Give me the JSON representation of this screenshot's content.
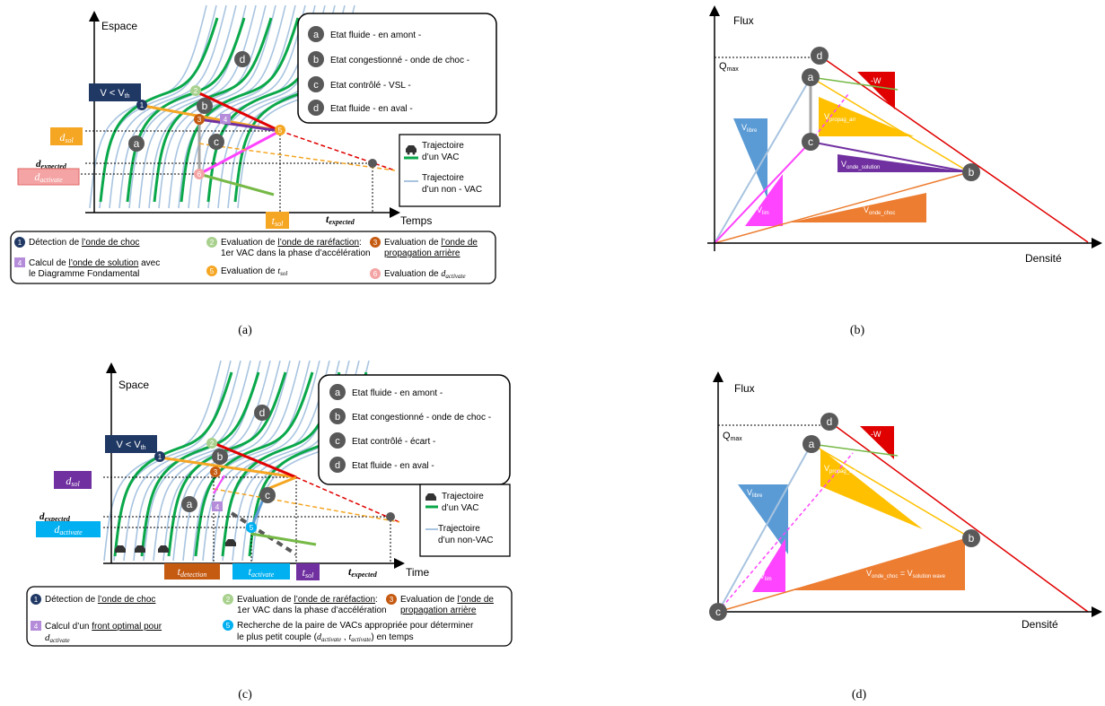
{
  "colors": {
    "blue_traj": "#a8c4e0",
    "green_traj": "#0aa84a",
    "orange": "#f5a623",
    "dark_orange": "#ed7d31",
    "red": "#e00000",
    "magenta": "#ff44ff",
    "purple": "#7030a0",
    "gray": "#a6a6a6",
    "navy": "#203864",
    "steel": "#5b9bd5",
    "yellow": "#ffc000",
    "sky": "#00b0f0",
    "light_green": "#a9d18e",
    "peach": "#f4b183",
    "pink_label": "#f4a4a4",
    "circle_gray": "#595959"
  },
  "panels": {
    "a": {
      "caption": "(a)",
      "y_label": "Espace",
      "x_label": "Temps",
      "v_label": "V < V",
      "v_sub": "th",
      "d_sol": "d",
      "d_sol_sub": "sol",
      "d_expected": "d",
      "d_expected_sub": "expected",
      "d_activate": "d",
      "d_activate_sub": "activate",
      "t_sol": "t",
      "t_sol_sub": "sol",
      "t_expected": "t",
      "t_expected_sub": "expected",
      "states": [
        {
          "id": "a",
          "text": "Etat fluide - en amont -"
        },
        {
          "id": "b",
          "text": "Etat congestionné - onde de choc -"
        },
        {
          "id": "c",
          "text": "Etat contrôlé - VSL -"
        },
        {
          "id": "d",
          "text": "Etat fluide - en aval -"
        }
      ],
      "legend": {
        "vac": "Trajectoire",
        "vac2": "d’un  VAC",
        "nonvac": "Trajectoire",
        "nonvac2": "d’un non - VAC"
      },
      "steps": {
        "s1_pre": "Détection de ",
        "s1_u": "l’onde de choc",
        "s2_pre": "Evaluation de ",
        "s2_u": "l’onde de raréfaction",
        "s2_post": ":",
        "s2_line2": "1er VAC dans la phase d’accélération",
        "s3_pre": "Evaluation de ",
        "s3_u": "l’onde de",
        "s3_line2": "propagation arrière",
        "s4_pre": "Calcul de ",
        "s4_u": "l’onde de solution",
        "s4_post": " avec",
        "s4_line2": "le Diagramme Fondamental",
        "s5": "Evaluation de ",
        "s5_var": "t",
        "s5_sub": "sol",
        "s6": "Evaluation de ",
        "s6_var": "d",
        "s6_sub": "activate"
      }
    },
    "b": {
      "caption": "(b)",
      "y_label": "Flux",
      "x_label": "Densité",
      "qmax": "Q",
      "qmax_sub": "max",
      "points": [
        "d",
        "a",
        "c",
        "b"
      ],
      "labels": {
        "vlibre": "V",
        "vlibre_sub": "libre",
        "vpropag": "V",
        "vpropag_sub": "propag_arr",
        "w": "-W",
        "vsol": "V",
        "vsol_sub": "onde_solution",
        "vlim": "V",
        "vlim_sub": "lim",
        "vchoc": "V",
        "vchoc_sub": "onde_choc"
      }
    },
    "c": {
      "caption": "(c)",
      "y_label": "Space",
      "x_label": "Time",
      "v_label": "V < V",
      "v_sub": "th",
      "d_sol": "d",
      "d_sol_sub": "sol",
      "d_expected": "d",
      "d_expected_sub": "expected",
      "d_activate": "d",
      "d_activate_sub": "activate",
      "t_detection": "t",
      "t_detection_sub": "detection",
      "t_activate": "t",
      "t_activate_sub": "activate",
      "t_sol": "t",
      "t_sol_sub": "sol",
      "t_expected": "t",
      "t_expected_sub": "expected",
      "states": [
        {
          "id": "a",
          "text": "Etat fluide - en amont -"
        },
        {
          "id": "b",
          "text": "Etat congestionné - onde de choc -"
        },
        {
          "id": "c",
          "text": "Etat contrôlé - écart -"
        },
        {
          "id": "d",
          "text": "Etat fluide - en aval -"
        }
      ],
      "legend": {
        "vac": "Trajectoire",
        "vac2": "d’un VAC",
        "nonvac": "Trajectoire",
        "nonvac2": "d’un non-VAC"
      },
      "steps": {
        "s1_pre": "Détection de ",
        "s1_u": "l’onde de choc",
        "s2_pre": "Evaluation de ",
        "s2_u": "l’onde de raréfaction",
        "s2_post": ":",
        "s2_line2": "1er VAC dans la phase d’accélération",
        "s3_pre": "Evaluation de ",
        "s3_u": "l’onde de",
        "s3_line2": "propagation arrière",
        "s4_pre": "Calcul d’un  ",
        "s4_u": "front optimal pour",
        "s4_var": "d",
        "s4_sub": "activate",
        "s5_line1": "Recherche de la paire de VACs appropriée pour déterminer",
        "s5_line2_pre": "le plus petit couple (",
        "s5_line2_post": ") en temps",
        "s5_v1": "d",
        "s5_s1": "activate",
        "s5_v2": "t",
        "s5_s2": "activate"
      }
    },
    "d": {
      "caption": "(d)",
      "y_label": "Flux",
      "x_label": "Densité",
      "qmax": "Q",
      "qmax_sub": "max",
      "points": [
        "d",
        "a",
        "b",
        "c"
      ],
      "labels": {
        "vlibre": "V",
        "vlibre_sub": "libre",
        "vpropag": "V",
        "vpropag_sub": "propag_arr",
        "w": "-W",
        "vlim": "V",
        "vlim_sub": "lim",
        "vchoc": "V",
        "vchoc_sub": "onde_choc",
        "vchoc_eq": " = V",
        "vchoc_sub2": "solution wave"
      }
    }
  }
}
